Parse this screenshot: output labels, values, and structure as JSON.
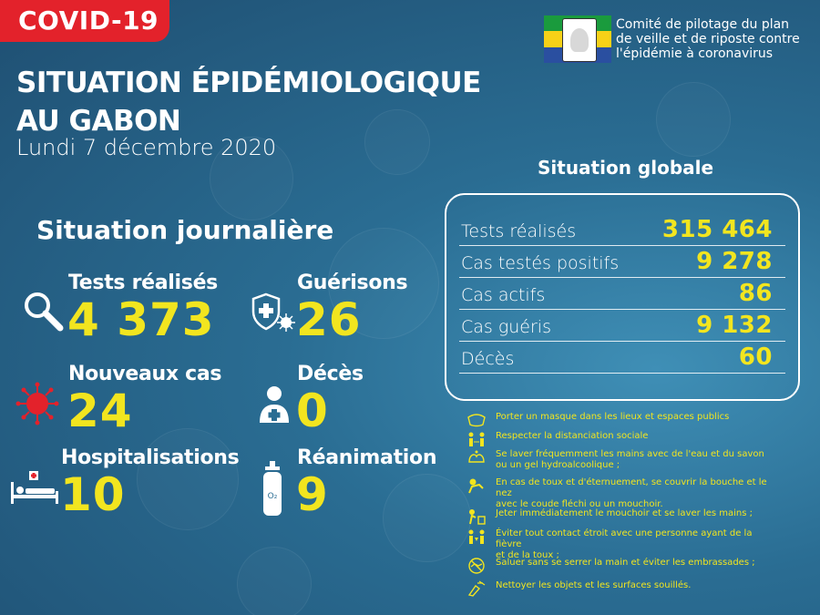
{
  "header": {
    "badge": "COVID-19",
    "title_line1": "SITUATION ÉPIDÉMIOLOGIQUE",
    "title_line2": "AU GABON",
    "date": "Lundi 7 décembre 2020"
  },
  "organization": {
    "line1": "Comité de pilotage du plan",
    "line2": "de veille et de riposte contre",
    "line3": "l'épidémie à coronavirus"
  },
  "daily": {
    "title": "Situation journalière",
    "stats": [
      {
        "label": "Tests réalisés",
        "value": "4 373",
        "icon": "magnifier-icon"
      },
      {
        "label": "Nouveaux cas",
        "value": "24",
        "icon": "virus-icon"
      },
      {
        "label": "Hospitalisations",
        "value": "10",
        "icon": "hospital-bed-icon"
      },
      {
        "label": "Guérisons",
        "value": "26",
        "icon": "shield-cross-icon"
      },
      {
        "label": "Décès",
        "value": "0",
        "icon": "person-cross-icon"
      },
      {
        "label": "Réanimation",
        "value": "9",
        "icon": "oxygen-tank-icon"
      }
    ]
  },
  "global": {
    "title": "Situation globale",
    "rows": [
      {
        "label": "Tests réalisés",
        "value": "315 464"
      },
      {
        "label": "Cas testés positifs",
        "value": "9 278"
      },
      {
        "label": "Cas actifs",
        "value": "86"
      },
      {
        "label": "Cas guéris",
        "value": "9 132"
      },
      {
        "label": "Décès",
        "value": "60"
      }
    ]
  },
  "advice": [
    "Porter un masque dans les lieux et espaces publics",
    "Respecter la distanciation sociale",
    "Se laver fréquemment les mains avec de l'eau et du savon",
    "ou un gel hydroalcoolique ;",
    "En cas de toux et d'éternuement, se couvrir la bouche et le nez",
    "avec le coude fléchi ou un mouchoir.",
    "Jeter immédiatement le mouchoir et se laver les mains ;",
    "Éviter tout contact étroit avec une personne ayant de la fièvre",
    "et de la toux ;",
    "Saluer sans se serrer la main et éviter les embrassades ;",
    "Nettoyer les objets et les surfaces souillés."
  ],
  "colors": {
    "badge_red": "#e3222b",
    "value_yellow": "#f2e51f",
    "background_blue": "#2a6d93"
  }
}
